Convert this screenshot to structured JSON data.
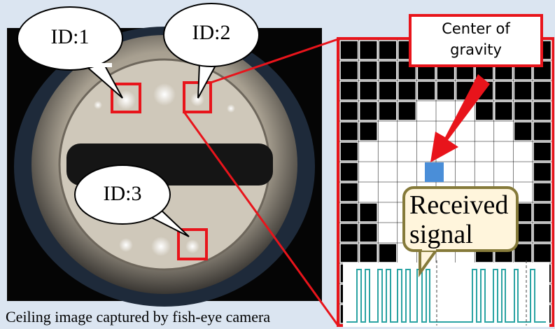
{
  "bubbles": [
    {
      "label": "ID:1"
    },
    {
      "label": "ID:2"
    },
    {
      "label": "ID:3"
    }
  ],
  "callouts": {
    "center_of_gravity": "Center of gravity",
    "received_signal": "Received signal"
  },
  "caption": "Ceiling image captured by fish-eye camera"
}
